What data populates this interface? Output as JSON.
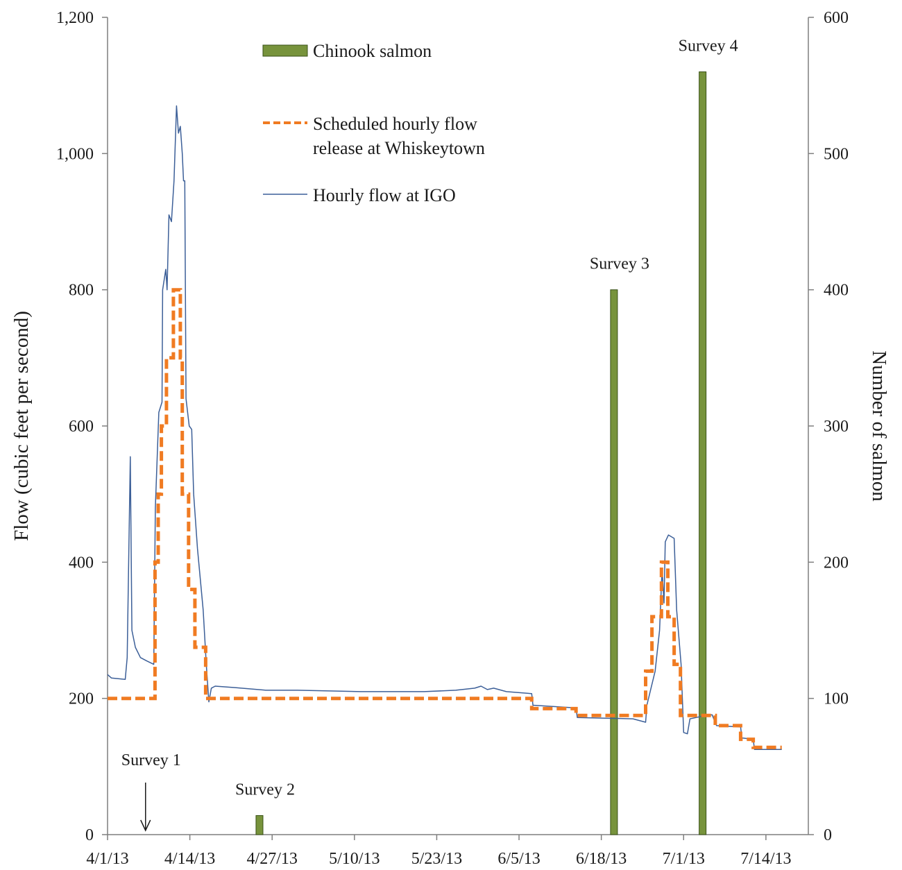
{
  "chart_data": {
    "type": "bar+line",
    "title": "",
    "xlabel": "",
    "ylabel_left": "Flow (cubic feet per second)",
    "ylabel_right": "Number of salmon",
    "ylim_left": [
      0,
      1200
    ],
    "ylim_right": [
      0,
      600
    ],
    "yticks_left": [
      "0",
      "200",
      "400",
      "600",
      "800",
      "1,000",
      "1,200"
    ],
    "yticks_right": [
      "0",
      "100",
      "200",
      "300",
      "400",
      "500",
      "600"
    ],
    "xticks": [
      "4/1/13",
      "4/14/13",
      "4/27/13",
      "5/10/13",
      "5/23/13",
      "6/5/13",
      "6/18/13",
      "7/1/13",
      "7/14/13"
    ],
    "xtick_days": [
      0,
      13,
      26,
      39,
      52,
      65,
      78,
      91,
      104
    ],
    "grid": false,
    "legend_position": "top-center",
    "legend": {
      "bars": "Chinook salmon",
      "scheduled_line1": "Scheduled hourly flow",
      "scheduled_line2": "release at Whiskeytown",
      "hourly": "Hourly flow at IGO"
    },
    "colors": {
      "bars": "#77933c",
      "bar_edge": "#3a5218",
      "scheduled": "#f07b22",
      "hourly": "#3c5f98",
      "axis": "#7f7f7f"
    },
    "series": [
      {
        "name": "Chinook salmon",
        "axis": "right",
        "kind": "bar",
        "points": [
          {
            "day": 6,
            "value": 0
          },
          {
            "day": 24,
            "value": 14
          },
          {
            "day": 80,
            "value": 400
          },
          {
            "day": 94,
            "value": 560
          }
        ]
      },
      {
        "name": "Scheduled hourly flow release at Whiskeytown",
        "axis": "left",
        "kind": "step",
        "points": [
          [
            0,
            200
          ],
          [
            7.5,
            200
          ],
          [
            7.5,
            400
          ],
          [
            8,
            400
          ],
          [
            8,
            500
          ],
          [
            8.5,
            500
          ],
          [
            8.5,
            600
          ],
          [
            9.3,
            600
          ],
          [
            9.3,
            700
          ],
          [
            10.4,
            700
          ],
          [
            10.4,
            800
          ],
          [
            11.5,
            800
          ],
          [
            11.5,
            700
          ],
          [
            11.8,
            700
          ],
          [
            11.8,
            500
          ],
          [
            12.8,
            500
          ],
          [
            12.8,
            360
          ],
          [
            13.8,
            360
          ],
          [
            13.8,
            275
          ],
          [
            15.5,
            275
          ],
          [
            15.5,
            200
          ],
          [
            67,
            200
          ],
          [
            67,
            185
          ],
          [
            74,
            185
          ],
          [
            74,
            175
          ],
          [
            85,
            175
          ],
          [
            85,
            240
          ],
          [
            86,
            240
          ],
          [
            86,
            320
          ],
          [
            87.5,
            320
          ],
          [
            87.5,
            400
          ],
          [
            88.5,
            400
          ],
          [
            88.5,
            320
          ],
          [
            89.5,
            320
          ],
          [
            89.5,
            250
          ],
          [
            90.5,
            250
          ],
          [
            90.5,
            175
          ],
          [
            96,
            175
          ],
          [
            96,
            160
          ],
          [
            100,
            160
          ],
          [
            100,
            140
          ],
          [
            102,
            140
          ],
          [
            102,
            128
          ],
          [
            106.5,
            128
          ]
        ]
      },
      {
        "name": "Hourly flow at IGO",
        "axis": "left",
        "kind": "line",
        "points": [
          [
            0,
            235
          ],
          [
            0.6,
            230
          ],
          [
            2.8,
            228
          ],
          [
            3.1,
            260
          ],
          [
            3.6,
            555
          ],
          [
            3.85,
            300
          ],
          [
            4.4,
            275
          ],
          [
            5.2,
            260
          ],
          [
            6.2,
            255
          ],
          [
            7.3,
            250
          ],
          [
            7.55,
            480
          ],
          [
            8.1,
            620
          ],
          [
            8.6,
            635
          ],
          [
            8.7,
            800
          ],
          [
            9.2,
            830
          ],
          [
            9.4,
            800
          ],
          [
            9.7,
            910
          ],
          [
            10.1,
            900
          ],
          [
            10.5,
            960
          ],
          [
            10.9,
            1070
          ],
          [
            11.2,
            1030
          ],
          [
            11.5,
            1040
          ],
          [
            11.8,
            1000
          ],
          [
            12.0,
            960
          ],
          [
            12.2,
            960
          ],
          [
            12.4,
            640
          ],
          [
            12.9,
            600
          ],
          [
            13.3,
            595
          ],
          [
            13.6,
            500
          ],
          [
            14.2,
            420
          ],
          [
            15.1,
            330
          ],
          [
            15.6,
            250
          ],
          [
            16.0,
            195
          ],
          [
            16.4,
            215
          ],
          [
            17,
            218
          ],
          [
            20,
            216
          ],
          [
            25,
            212
          ],
          [
            30,
            212
          ],
          [
            40,
            210
          ],
          [
            50,
            210
          ],
          [
            55,
            212
          ],
          [
            58,
            215
          ],
          [
            59,
            218
          ],
          [
            60,
            213
          ],
          [
            61,
            215
          ],
          [
            63,
            210
          ],
          [
            67,
            207
          ],
          [
            67.2,
            190
          ],
          [
            74,
            186
          ],
          [
            74.2,
            172
          ],
          [
            83,
            170
          ],
          [
            85.0,
            165
          ],
          [
            85.2,
            190
          ],
          [
            86.5,
            240
          ],
          [
            87.2,
            300
          ],
          [
            87.6,
            390
          ],
          [
            87.9,
            340
          ],
          [
            88.1,
            430
          ],
          [
            88.6,
            440
          ],
          [
            89.5,
            435
          ],
          [
            89.9,
            330
          ],
          [
            90.6,
            250
          ],
          [
            91.0,
            150
          ],
          [
            91.6,
            148
          ],
          [
            92,
            170
          ],
          [
            94,
            174
          ],
          [
            95.5,
            176
          ],
          [
            96.2,
            160
          ],
          [
            100,
            158
          ],
          [
            100.2,
            142
          ],
          [
            102,
            140
          ],
          [
            102.2,
            125
          ],
          [
            106.5,
            125
          ]
        ]
      }
    ],
    "annotations": [
      {
        "text": "Survey 1",
        "day": 6,
        "arrow": true
      },
      {
        "text": "Survey 2",
        "day": 24
      },
      {
        "text": "Survey 3",
        "day": 80
      },
      {
        "text": "Survey 4",
        "day": 94
      }
    ]
  }
}
